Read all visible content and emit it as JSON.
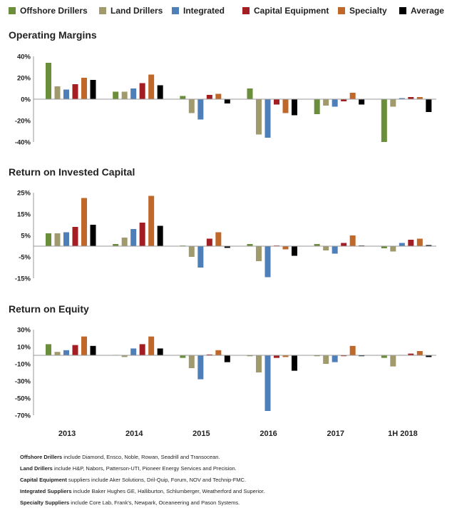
{
  "colors": {
    "Offshore Drillers": "#6b8e3a",
    "Land Drillers": "#a09a6d",
    "Integrated": "#4f7fb8",
    "Capital Equipment": "#a31e23",
    "Specialty": "#c0672a",
    "Average": "#000000"
  },
  "chart_data": [
    {
      "type": "bar",
      "title": "Operating Margins",
      "categories": [
        "2013",
        "2014",
        "2015",
        "2016",
        "2017",
        "1H 2018"
      ],
      "ylim": [
        -40,
        40
      ],
      "yticks": [
        40,
        20,
        0,
        -20,
        -40
      ],
      "yticklabels": [
        "40%",
        "20%",
        "0%",
        "-20%",
        "-40%"
      ],
      "series": [
        {
          "name": "Offshore Drillers",
          "values": [
            34,
            7,
            3,
            10,
            -14,
            -40
          ]
        },
        {
          "name": "Land Drillers",
          "values": [
            12,
            7,
            -13,
            -33,
            -6,
            -7
          ]
        },
        {
          "name": "Integrated",
          "values": [
            9,
            10,
            -19,
            -36,
            -7,
            1
          ]
        },
        {
          "name": "Capital Equipment",
          "values": [
            14,
            15,
            4,
            -5,
            -2,
            2
          ]
        },
        {
          "name": "Specialty",
          "values": [
            20,
            23,
            5,
            -13,
            6,
            2
          ]
        },
        {
          "name": "Average",
          "values": [
            18,
            13,
            -4,
            -15,
            -5,
            -12
          ]
        }
      ],
      "legend": "top"
    },
    {
      "type": "bar",
      "title": "Return on Invested Capital",
      "categories": [
        "2013",
        "2014",
        "2015",
        "2016",
        "2017",
        "1H 2018"
      ],
      "ylim": [
        -15,
        25
      ],
      "yticks": [
        25,
        15,
        5,
        -5,
        -15
      ],
      "yticklabels": [
        "25%",
        "15%",
        "5%",
        "-5%",
        "-15%"
      ],
      "series": [
        {
          "name": "Offshore Drillers",
          "values": [
            6,
            1,
            0.3,
            1,
            1,
            -1
          ]
        },
        {
          "name": "Land Drillers",
          "values": [
            6,
            4,
            -5,
            -7,
            -2,
            -2.5
          ]
        },
        {
          "name": "Integrated",
          "values": [
            6.5,
            8,
            -10,
            -14.5,
            -3.5,
            1.5
          ]
        },
        {
          "name": "Capital Equipment",
          "values": [
            9,
            11,
            3.5,
            0.3,
            1.5,
            3
          ]
        },
        {
          "name": "Specialty",
          "values": [
            22.5,
            23.5,
            6.5,
            -1.5,
            5,
            3.5
          ]
        },
        {
          "name": "Average",
          "values": [
            10,
            9.5,
            -0.8,
            -4.5,
            0.3,
            0.5
          ]
        }
      ]
    },
    {
      "type": "bar",
      "title": "Return on Equity",
      "categories": [
        "2013",
        "2014",
        "2015",
        "2016",
        "2017",
        "1H 2018"
      ],
      "ylim": [
        -70,
        30
      ],
      "yticks": [
        30,
        10,
        -10,
        -30,
        -50,
        -70
      ],
      "yticklabels": [
        "30%",
        "10%",
        "-10%",
        "-30%",
        "-50%",
        "-70%"
      ],
      "series": [
        {
          "name": "Offshore Drillers",
          "values": [
            13,
            0.5,
            -3,
            -1,
            -1,
            -3
          ]
        },
        {
          "name": "Land Drillers",
          "values": [
            4,
            -2,
            -15,
            -20,
            -10,
            -13
          ]
        },
        {
          "name": "Integrated",
          "values": [
            6,
            8,
            -28,
            -65,
            -8,
            0.5
          ]
        },
        {
          "name": "Capital Equipment",
          "values": [
            12,
            13,
            1,
            -3,
            -1,
            2
          ]
        },
        {
          "name": "Specialty",
          "values": [
            22,
            22,
            6,
            -2,
            11,
            5
          ]
        },
        {
          "name": "Average",
          "values": [
            11,
            8,
            -8,
            -18,
            -1,
            -2
          ]
        }
      ]
    }
  ],
  "legend_labels": [
    "Offshore Drillers",
    "Land Drillers",
    "Integrated",
    "Capital Equipment",
    "Specialty",
    "Average"
  ],
  "notes": [
    {
      "bold": "Offshore Drillers",
      "text": " include Diamond, Ensco, Noble, Rowan, Seadrill and Transocean."
    },
    {
      "bold": "Land Drillers",
      "text": " include H&P, Nabors, Patterson-UTI, Pioneer Energy Services and Precision."
    },
    {
      "bold": "Capital Equipment",
      "text": " suppliers include Aker Solutions, Dril-Quip, Forum, NOV and Technip-FMC."
    },
    {
      "bold": "Integrated Suppliers",
      "text": " include Baker Hughes GE, Halliburton, Schlumberger, Weatherford and Superior."
    },
    {
      "bold": "Specialty Suppliers",
      "text": " include Core Lab, Frank's, Newpark, Oceaneering and Pason Systems."
    }
  ]
}
